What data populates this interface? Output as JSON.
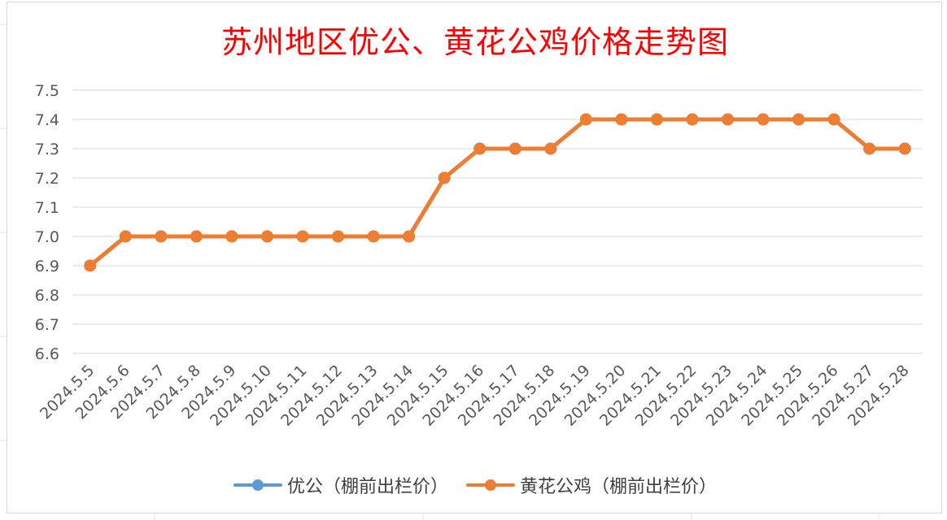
{
  "chart_data": {
    "type": "line",
    "title": "苏州地区优公、黄花公鸡价格走势图",
    "xlabel": "",
    "ylabel": "",
    "ylim": [
      6.6,
      7.5
    ],
    "yticks": [
      "7.5",
      "7.4",
      "7.3",
      "7.2",
      "7.1",
      "7.0",
      "6.9",
      "6.8",
      "6.7",
      "6.6"
    ],
    "grid": true,
    "legend_position": "bottom",
    "categories": [
      "2024.5.5",
      "2024.5.6",
      "2024.5.7",
      "2024.5.8",
      "2024.5.9",
      "2024.5.10",
      "2024.5.11",
      "2024.5.12",
      "2024.5.13",
      "2024.5.14",
      "2024.5.15",
      "2024.5.16",
      "2024.5.17",
      "2024.5.18",
      "2024.5.19",
      "2024.5.20",
      "2024.5.21",
      "2024.5.22",
      "2024.5.23",
      "2024.5.24",
      "2024.5.25",
      "2024.5.26",
      "2024.5.27",
      "2024.5.28"
    ],
    "series": [
      {
        "name": "优公（棚前出栏价）",
        "color": "#5b9bd5",
        "values": [
          6.9,
          7.0,
          7.0,
          7.0,
          7.0,
          7.0,
          7.0,
          7.0,
          7.0,
          7.0,
          7.2,
          7.3,
          7.3,
          7.3,
          7.4,
          7.4,
          7.4,
          7.4,
          7.4,
          7.4,
          7.4,
          7.4,
          7.3,
          7.3
        ]
      },
      {
        "name": "黄花公鸡（棚前出栏价）",
        "color": "#ed7d31",
        "values": [
          6.9,
          7.0,
          7.0,
          7.0,
          7.0,
          7.0,
          7.0,
          7.0,
          7.0,
          7.0,
          7.2,
          7.3,
          7.3,
          7.3,
          7.4,
          7.4,
          7.4,
          7.4,
          7.4,
          7.4,
          7.4,
          7.4,
          7.3,
          7.3
        ]
      }
    ]
  }
}
